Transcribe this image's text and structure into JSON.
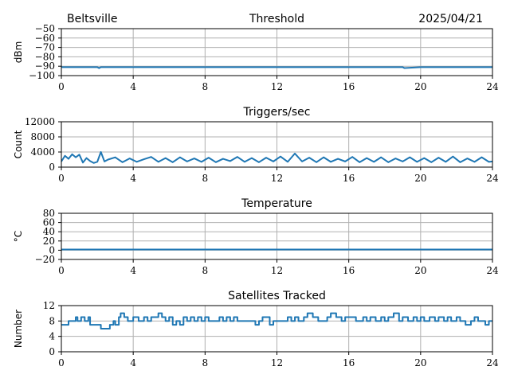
{
  "header": {
    "left": "Beltsville",
    "center": "Threshold",
    "right": "2025/04/21"
  },
  "chart_data": [
    {
      "type": "line",
      "title": "Threshold",
      "xlabel": "",
      "ylabel": "dBm",
      "xlim": [
        0,
        24
      ],
      "ylim": [
        -100,
        -50
      ],
      "xticks": [
        0,
        4,
        8,
        12,
        16,
        20,
        24
      ],
      "yticks": [
        -100,
        -90,
        -80,
        -70,
        -60,
        -50
      ],
      "grid": true,
      "series": [
        {
          "x": [
            0,
            2,
            2.1,
            2.2,
            4,
            6,
            8,
            10,
            12,
            14,
            16,
            18,
            19,
            19.1,
            20,
            22,
            24
          ],
          "y": [
            -91,
            -91,
            -92,
            -91,
            -91,
            -91,
            -91,
            -91,
            -91,
            -91,
            -91,
            -91,
            -91,
            -92,
            -91,
            -91,
            -91
          ]
        }
      ]
    },
    {
      "type": "line",
      "title": "Triggers/sec",
      "xlabel": "",
      "ylabel": "Count",
      "xlim": [
        0,
        24
      ],
      "ylim": [
        0,
        12000
      ],
      "xticks": [
        0,
        4,
        8,
        12,
        16,
        20,
        24
      ],
      "yticks": [
        0,
        4000,
        8000,
        12000
      ],
      "grid": true,
      "series": [
        {
          "x": [
            0,
            0.2,
            0.4,
            0.6,
            0.8,
            1.0,
            1.2,
            1.4,
            1.6,
            1.8,
            2.0,
            2.2,
            2.4,
            2.6,
            3.0,
            3.4,
            3.8,
            4.2,
            4.6,
            5.0,
            5.4,
            5.8,
            6.2,
            6.6,
            7.0,
            7.4,
            7.8,
            8.2,
            8.6,
            9.0,
            9.4,
            9.8,
            10.2,
            10.6,
            11.0,
            11.4,
            11.8,
            12.2,
            12.6,
            13.0,
            13.4,
            13.8,
            14.2,
            14.6,
            15.0,
            15.4,
            15.8,
            16.2,
            16.6,
            17.0,
            17.4,
            17.8,
            18.2,
            18.6,
            19.0,
            19.4,
            19.8,
            20.2,
            20.6,
            21.0,
            21.4,
            21.8,
            22.2,
            22.6,
            23.0,
            23.4,
            23.8,
            24.0
          ],
          "y": [
            1500,
            3000,
            2200,
            3400,
            2600,
            3300,
            1200,
            2400,
            1600,
            1100,
            1400,
            4000,
            1500,
            2000,
            2600,
            1300,
            2300,
            1400,
            2100,
            2700,
            1400,
            2400,
            1300,
            2600,
            1500,
            2300,
            1400,
            2500,
            1300,
            2200,
            1600,
            2700,
            1400,
            2400,
            1300,
            2500,
            1500,
            2800,
            1400,
            3600,
            1500,
            2500,
            1300,
            2600,
            1400,
            2200,
            1500,
            2700,
            1300,
            2400,
            1400,
            2600,
            1300,
            2300,
            1500,
            2600,
            1400,
            2400,
            1300,
            2500,
            1400,
            2800,
            1300,
            2300,
            1400,
            2600,
            1400,
            1500
          ]
        }
      ]
    },
    {
      "type": "line",
      "title": "Temperature",
      "xlabel": "",
      "ylabel": "°C",
      "xlim": [
        0,
        24
      ],
      "ylim": [
        -20,
        80
      ],
      "xticks": [
        0,
        4,
        8,
        12,
        16,
        20,
        24
      ],
      "yticks": [
        -20,
        0,
        20,
        40,
        60,
        80
      ],
      "grid": true,
      "series": [
        {
          "x": [
            0,
            24
          ],
          "y": [
            1.5,
            1.5
          ]
        }
      ]
    },
    {
      "type": "line",
      "title": "Satellites Tracked",
      "xlabel": "",
      "ylabel": "Number",
      "xlim": [
        0,
        24
      ],
      "ylim": [
        0,
        12
      ],
      "xticks": [
        0,
        4,
        8,
        12,
        16,
        20,
        24
      ],
      "yticks": [
        0,
        4,
        8,
        12
      ],
      "grid": true,
      "step": true,
      "series": [
        {
          "x": [
            0,
            0.4,
            0.8,
            0.9,
            1.1,
            1.3,
            1.5,
            1.6,
            2.2,
            2.7,
            2.9,
            3.0,
            3.2,
            3.3,
            3.5,
            3.7,
            4.0,
            4.3,
            4.6,
            4.8,
            5.0,
            5.4,
            5.6,
            5.8,
            6.0,
            6.2,
            6.4,
            6.6,
            6.8,
            7.0,
            7.2,
            7.4,
            7.6,
            7.8,
            8.0,
            8.2,
            8.4,
            8.6,
            8.8,
            9.0,
            9.2,
            9.4,
            9.6,
            9.8,
            10.0,
            10.4,
            10.8,
            11.0,
            11.2,
            11.6,
            11.8,
            12.0,
            12.3,
            12.6,
            12.8,
            13.0,
            13.2,
            13.5,
            13.7,
            14.0,
            14.3,
            14.6,
            14.8,
            15.0,
            15.3,
            15.6,
            15.8,
            16.0,
            16.4,
            16.8,
            17.0,
            17.2,
            17.5,
            17.8,
            18.0,
            18.2,
            18.5,
            18.8,
            19.0,
            19.3,
            19.6,
            19.8,
            20.0,
            20.2,
            20.5,
            20.8,
            21.0,
            21.3,
            21.5,
            21.7,
            22.0,
            22.2,
            22.5,
            22.8,
            23.0,
            23.2,
            23.4,
            23.6,
            23.8,
            24.0
          ],
          "y": [
            7,
            8,
            9,
            8,
            9,
            8,
            9,
            7,
            6,
            7,
            8,
            7,
            9,
            10,
            9,
            8,
            9,
            8,
            9,
            8,
            9,
            10,
            9,
            8,
            9,
            7,
            8,
            7,
            9,
            8,
            9,
            8,
            9,
            8,
            9,
            8,
            8,
            8,
            9,
            8,
            9,
            8,
            9,
            8,
            8,
            8,
            7,
            8,
            9,
            7,
            8,
            8,
            8,
            9,
            8,
            9,
            8,
            9,
            10,
            9,
            8,
            8,
            9,
            10,
            9,
            8,
            9,
            9,
            8,
            9,
            8,
            9,
            8,
            9,
            8,
            9,
            10,
            8,
            9,
            8,
            9,
            8,
            9,
            8,
            9,
            8,
            9,
            8,
            9,
            8,
            9,
            8,
            7,
            8,
            9,
            8,
            8,
            7,
            8,
            8
          ]
        }
      ]
    }
  ]
}
